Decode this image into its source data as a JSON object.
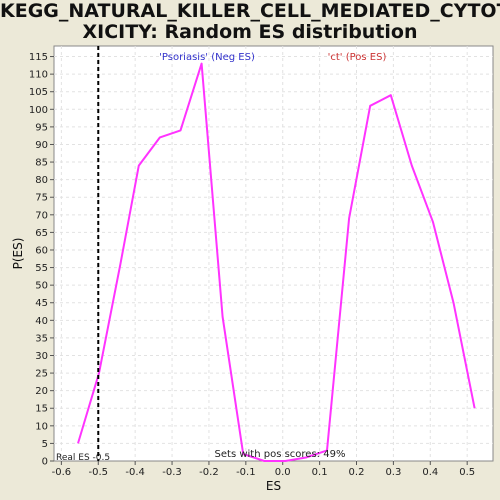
{
  "title": {
    "line1": "KEGG_NATURAL_KILLER_CELL_MEDIATED_CYTOTO",
    "line2": "XICITY: Random ES distribution"
  },
  "chart_data": {
    "type": "line",
    "title": "KEGG_NATURAL_KILLER_CELL_MEDIATED_CYTOTOXICITY: Random ES distribution",
    "xlabel": "ES",
    "ylabel": "P(ES)",
    "xlim": [
      -0.62,
      0.57
    ],
    "ylim": [
      0,
      118
    ],
    "x_ticks": [
      -0.6,
      -0.5,
      -0.4,
      -0.3,
      -0.2,
      -0.1,
      0.0,
      0.1,
      0.2,
      0.3,
      0.4,
      0.5
    ],
    "x_tick_labels": [
      "-0.6",
      "-0.5",
      "-0.4",
      "-0.3",
      "-0.2",
      "-0.1",
      "0.0",
      "0.1",
      "0.2",
      "0.3",
      "0.4",
      "0.5"
    ],
    "y_ticks": [
      0,
      5,
      10,
      15,
      20,
      25,
      30,
      35,
      40,
      45,
      50,
      55,
      60,
      65,
      70,
      75,
      80,
      85,
      90,
      95,
      100,
      105,
      110,
      115
    ],
    "grid": true,
    "series": [
      {
        "color": "#ff33ff",
        "x": [
          -0.555,
          -0.498,
          -0.44,
          -0.39,
          -0.333,
          -0.277,
          -0.22,
          -0.163,
          -0.107,
          -0.05,
          0.007,
          0.063,
          0.12,
          0.18,
          0.237,
          0.293,
          0.35,
          0.407,
          0.463,
          0.52
        ],
        "y": [
          5,
          25,
          56,
          84,
          92,
          94,
          113,
          41,
          2,
          0,
          0,
          1,
          3,
          69,
          101,
          104,
          84,
          68,
          45,
          15
        ]
      }
    ],
    "real_es": {
      "value": -0.5,
      "label": "Real ES -0.5",
      "color": "#000000",
      "style": "dashed"
    },
    "annotations": {
      "neg_label": "'Psoriasis' (Neg ES)",
      "neg_color": "#3333cc",
      "pos_label": "'ct' (Pos ES)",
      "pos_color": "#cc3333",
      "bottom_note": "Sets with pos scores: 49%"
    }
  }
}
